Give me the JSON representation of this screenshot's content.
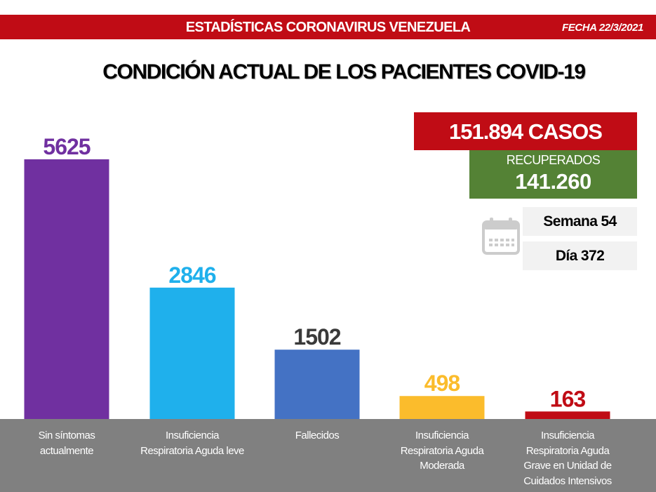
{
  "header": {
    "title": "ESTADÍSTICAS CORONAVIRUS VENEZUELA",
    "date": "FECHA 22/3/2021"
  },
  "main_title": "CONDICIÓN ACTUAL DE LOS PACIENTES COVID-19",
  "summary": {
    "cases": "151.894 CASOS",
    "recovered_label": "RECUPERADOS",
    "recovered_value": "141.260",
    "week": "Semana 54",
    "day": "Día 372",
    "calendar_icon": "calendar-icon"
  },
  "colors": {
    "header_red": "#c00c15",
    "recovered_green": "#548235",
    "label_band_gray": "#808080",
    "info_box_gray": "#f2f2f2"
  },
  "chart_data": {
    "type": "bar",
    "title": "CONDICIÓN ACTUAL DE LOS PACIENTES COVID-19",
    "xlabel": "",
    "ylabel": "",
    "ylim": [
      0,
      5625
    ],
    "grid": false,
    "legend": "none",
    "categories": [
      "Sin síntomas actualmente",
      "Insuficiencia Respiratoria Aguda leve",
      "Fallecidos",
      "Insuficiencia Respiratoria Aguda Moderada",
      "Insuficiencia Respiratoria Aguda Grave en Unidad de Cuidados Intensivos"
    ],
    "category_lines": [
      [
        "Sin síntomas",
        "actualmente"
      ],
      [
        "Insuficiencia",
        "Respiratoria Aguda leve"
      ],
      [
        "Fallecidos"
      ],
      [
        "Insuficiencia",
        "Respiratoria Aguda",
        "Moderada"
      ],
      [
        "Insuficiencia",
        "Respiratoria Aguda",
        "Grave en Unidad de",
        "Cuidados Intensivos"
      ]
    ],
    "values": [
      5625,
      2846,
      1502,
      498,
      163
    ],
    "data_labels": [
      "5625",
      "2846",
      "1502",
      "498",
      "163"
    ],
    "bar_colors": [
      "#7030a0",
      "#1fb0ec",
      "#4472c4",
      "#fbbc2c",
      "#c00c15"
    ],
    "label_colors": [
      "#7030a0",
      "#1fb0ec",
      "#3a3a3a",
      "#fbbc2c",
      "#c00c15"
    ]
  }
}
